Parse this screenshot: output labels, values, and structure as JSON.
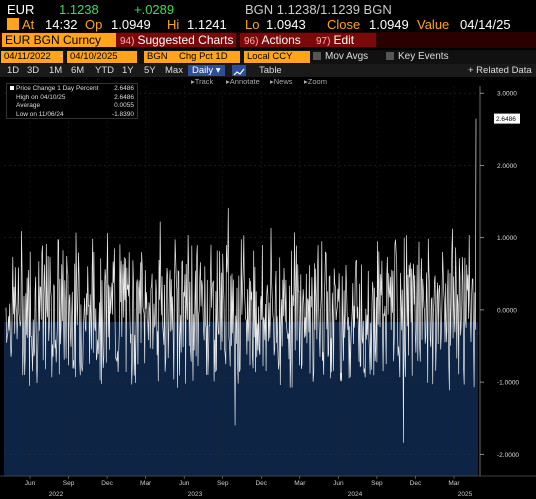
{
  "quote": {
    "ticker": "EUR",
    "last": "1.1238",
    "change": "+.0289",
    "source_bid_ask": "BGN 1.1238/1.1239 BGN"
  },
  "status": {
    "at_label": "At",
    "time": "14:32",
    "op_label": "Op",
    "open": "1.0949",
    "hi_label": "Hi",
    "high": "1.1241",
    "lo_label": "Lo",
    "low": "1.0943",
    "close_label": "Close",
    "close": "1.0949",
    "value_label": "Value",
    "value_date": "04/14/25"
  },
  "menu": {
    "security": "EUR BGN Curncy",
    "suggested": {
      "num": "94)",
      "label": "Suggested Charts"
    },
    "actions": {
      "num": "96)",
      "label": "Actions"
    },
    "edit": {
      "num": "97)",
      "label": "Edit"
    }
  },
  "fields": {
    "start_date": "04/11/2022",
    "end_date": "04/10/2025",
    "source": "BGN",
    "study": "Chg Pct 1D",
    "currency": "Local CCY",
    "mov_avgs": "Mov Avgs",
    "key_events": "Key Events"
  },
  "ranges": {
    "items": [
      "1D",
      "3D",
      "1M",
      "6M",
      "YTD",
      "1Y",
      "5Y",
      "Max"
    ],
    "frequency": "Daily",
    "table": "Table",
    "related": "+ Related Data"
  },
  "tools": {
    "track": "Track",
    "annotate": "Annotate",
    "news": "News",
    "zoom": "Zoom"
  },
  "legend": {
    "rows": [
      {
        "label": "Price Change 1 Day Percent",
        "value": "2.6486"
      },
      {
        "label": "High on 04/10/25",
        "value": "2.6486"
      },
      {
        "label": "Average",
        "value": "0.0055"
      },
      {
        "label": "Low on 11/06/24",
        "value": "-1.8390"
      }
    ]
  },
  "colors": {
    "positive": "#3ddc5a",
    "orange": "#ffa41b",
    "menu_red": "#7a0a0a",
    "selected_blue": "#2d4f9a",
    "area_fill": "#0d2444"
  },
  "chart_data": {
    "type": "line",
    "title": "",
    "series": [
      {
        "name": "Price Change 1 Day Percent",
        "last_label": "2.6486",
        "high": 2.6486,
        "average": 0.0055,
        "low": -1.839
      }
    ],
    "ylim": [
      -2.3,
      3.1
    ],
    "y_ticks": [
      "3.0000",
      "2.0000",
      "1.0000",
      "0.0000",
      "-1.0000",
      "-2.0000"
    ],
    "x_month_labels": [
      "Jun",
      "Sep",
      "Dec",
      "Mar",
      "Jun",
      "Sep",
      "Dec",
      "Mar",
      "Jun",
      "Sep",
      "Dec",
      "Mar"
    ],
    "x_year_labels": [
      "2022",
      "2023",
      "2024",
      "2025"
    ],
    "grid": true,
    "legend_position": "top-left"
  }
}
